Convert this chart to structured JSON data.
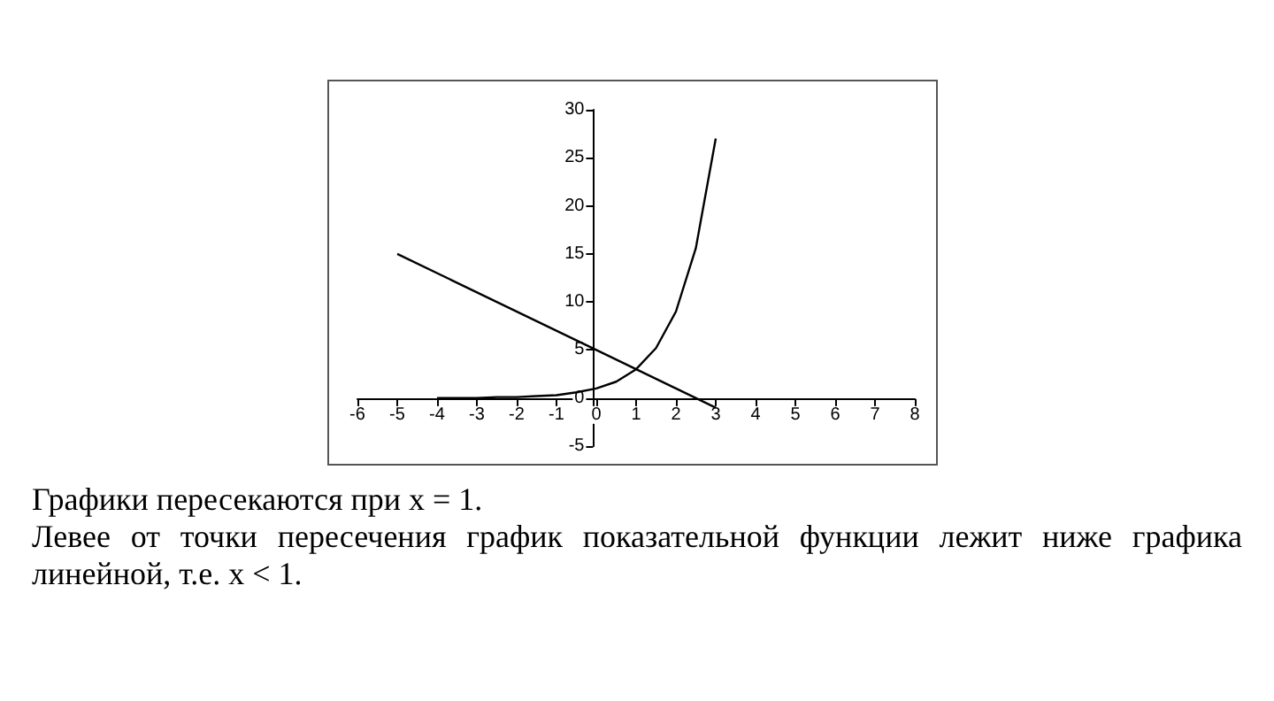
{
  "chart_data": {
    "type": "line",
    "xlim": [
      -6,
      8
    ],
    "ylim": [
      -5,
      30
    ],
    "xticks": [
      -6,
      -5,
      -4,
      -3,
      -2,
      -1,
      0,
      1,
      2,
      3,
      4,
      5,
      6,
      7,
      8
    ],
    "yticks": [
      -5,
      0,
      5,
      10,
      15,
      20,
      25,
      30
    ],
    "marker": "none",
    "line_style": "solid",
    "series": [
      {
        "color": "#000000",
        "x": [
          -5,
          0,
          3
        ],
        "values": [
          15,
          5,
          -1
        ]
      },
      {
        "color": "#000000",
        "x": [
          -4,
          -3.5,
          -3,
          -2.5,
          -2,
          -1.5,
          -1,
          -0.5,
          0,
          0.5,
          1,
          1.5,
          2,
          2.5,
          3
        ],
        "values": [
          0,
          0,
          0,
          0.1,
          0.1,
          0.2,
          0.3,
          0.6,
          1,
          1.7,
          3,
          5.2,
          9,
          15.6,
          27
        ]
      }
    ],
    "annotations": [
      "Графики пересекаются при x = 1.",
      "Левее от точки пересечения график показательной функции лежит ниже графика линейной, т.е. x < 1."
    ]
  }
}
